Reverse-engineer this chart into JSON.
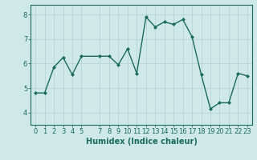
{
  "x": [
    0,
    1,
    2,
    3,
    4,
    5,
    7,
    8,
    9,
    10,
    11,
    12,
    13,
    14,
    15,
    16,
    17,
    18,
    19,
    20,
    21,
    22,
    23
  ],
  "y": [
    4.8,
    4.8,
    5.85,
    6.25,
    5.55,
    6.3,
    6.3,
    6.3,
    5.95,
    6.6,
    5.6,
    7.9,
    7.5,
    7.7,
    7.6,
    7.8,
    7.1,
    5.55,
    4.15,
    4.4,
    4.4,
    5.6,
    5.5
  ],
  "line_color": "#1a6b5a",
  "marker": "D",
  "marker_size": 2.0,
  "bg_color": "#cfe8e8",
  "grid_color": "#b8d4d4",
  "xlabel": "Humidex (Indice chaleur)",
  "xlabel_fontsize": 7,
  "ylim": [
    3.5,
    8.4
  ],
  "xlim": [
    -0.5,
    23.5
  ],
  "yticks": [
    4,
    5,
    6,
    7,
    8
  ],
  "xticks": [
    0,
    1,
    2,
    3,
    4,
    5,
    7,
    8,
    9,
    10,
    11,
    12,
    13,
    14,
    15,
    16,
    17,
    18,
    19,
    20,
    21,
    22,
    23
  ],
  "tick_fontsize": 6,
  "line_width": 1.0
}
